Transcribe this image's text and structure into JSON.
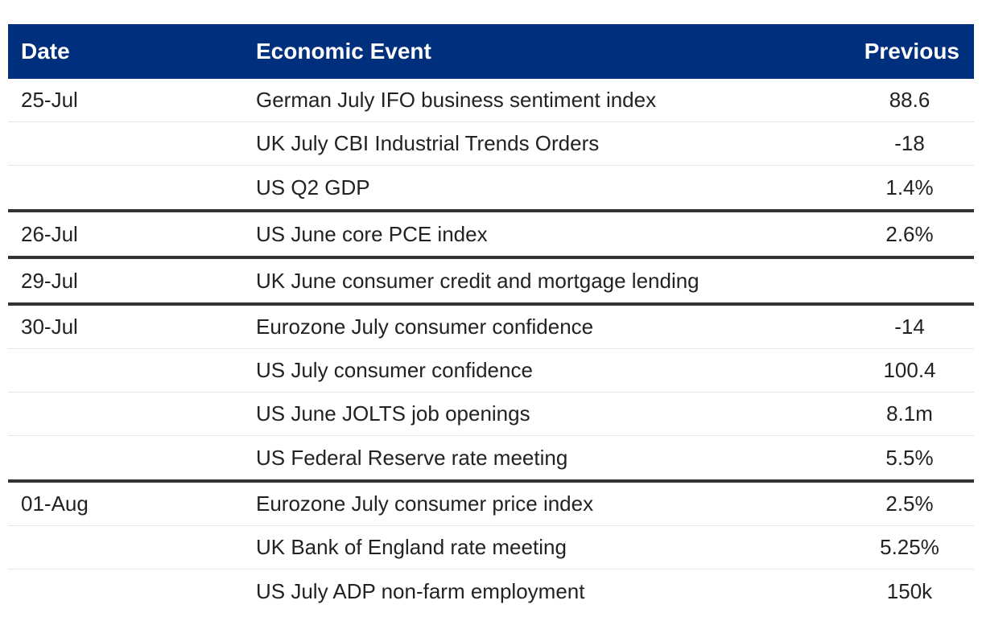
{
  "colors": {
    "header_bg": "#00307d",
    "header_text": "#ffffff",
    "group_divider": "#333333",
    "row_divider": "#e6e6e6"
  },
  "table": {
    "headers": {
      "date": "Date",
      "event": "Economic Event",
      "previous": "Previous"
    },
    "rows": [
      {
        "date": "25-Jul",
        "event": "German July IFO business sentiment index",
        "previous": "88.6"
      },
      {
        "date": "",
        "event": "UK July CBI Industrial Trends Orders",
        "previous": "-18"
      },
      {
        "date": "",
        "event": "US Q2 GDP",
        "previous": "1.4%"
      },
      {
        "date": "26-Jul",
        "event": "US June core PCE index",
        "previous": "2.6%"
      },
      {
        "date": "29-Jul",
        "event": "UK June consumer credit and mortgage lending",
        "previous": ""
      },
      {
        "date": "30-Jul",
        "event": "Eurozone July consumer confidence",
        "previous": "-14"
      },
      {
        "date": "",
        "event": "US July consumer confidence",
        "previous": "100.4"
      },
      {
        "date": "",
        "event": "US June JOLTS job openings",
        "previous": "8.1m"
      },
      {
        "date": "",
        "event": "US Federal Reserve rate meeting",
        "previous": "5.5%"
      },
      {
        "date": "01-Aug",
        "event": "Eurozone July consumer price index",
        "previous": "2.5%"
      },
      {
        "date": "",
        "event": "UK Bank of England rate meeting",
        "previous": "5.25%"
      },
      {
        "date": "",
        "event": "US July ADP non-farm employment",
        "previous": "150k"
      }
    ]
  }
}
